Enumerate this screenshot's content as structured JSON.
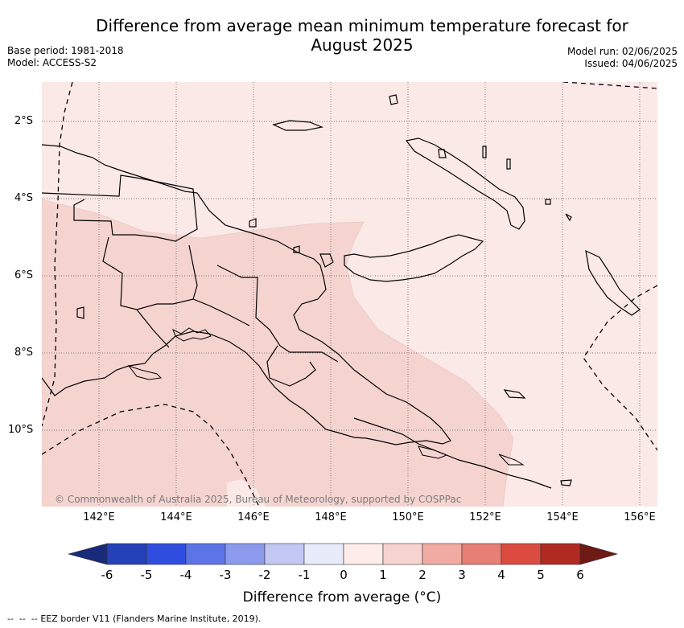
{
  "header": {
    "title_line1": "Difference from average mean minimum temperature forecast for",
    "title_line2": "August 2025",
    "base_period": "Base period: 1981-2018",
    "model": "Model: ACCESS-S2",
    "model_run": "Model run: 02/06/2025",
    "issued": "Issued: 04/06/2025"
  },
  "map": {
    "lat_labels": [
      "2°S",
      "4°S",
      "6°S",
      "8°S",
      "10°S"
    ],
    "lon_labels": [
      "142°E",
      "144°E",
      "146°E",
      "148°E",
      "150°E",
      "152°E",
      "154°E",
      "156°E"
    ],
    "credit": "© Commonwealth of Australia 2025, Bureau of Meteorology, supported by COSPPac",
    "colors": {
      "ocean_band_0_1": "#fbe9e7",
      "band_1_2": "#f5d4d0",
      "land_outline": "#000000",
      "eez_border": "#000000"
    }
  },
  "colorbar": {
    "ticks": [
      "-6",
      "-5",
      "-4",
      "-3",
      "-2",
      "-1",
      "0",
      "1",
      "2",
      "3",
      "4",
      "5",
      "6"
    ],
    "colors": [
      "#182a7a",
      "#2441b8",
      "#2f4ee0",
      "#5c74e6",
      "#8b9aec",
      "#c2c8f3",
      "#e8ebf9",
      "#fdecea",
      "#f6d3cf",
      "#f1aba3",
      "#e77f74",
      "#dc4b3f",
      "#b02a22",
      "#6e1a15"
    ],
    "label": "Difference from average (°C)"
  },
  "legend": {
    "eez_label": "EEZ border V11 (Flanders Marine Institute, 2019)."
  }
}
